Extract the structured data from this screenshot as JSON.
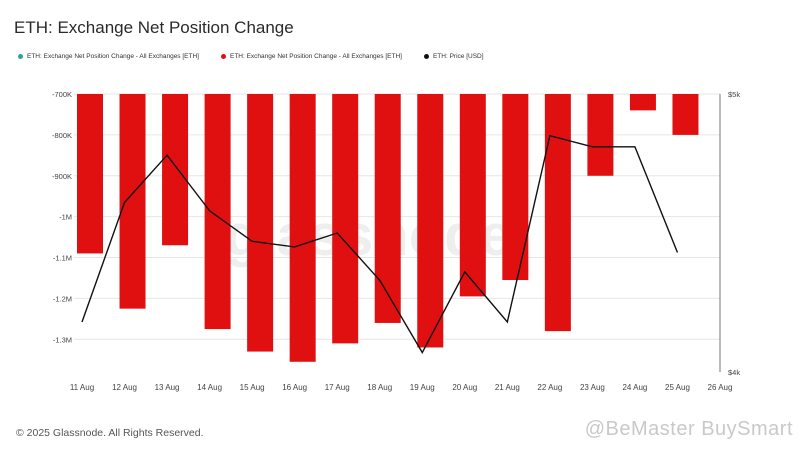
{
  "page": {
    "title": "ETH: Exchange Net Position Change",
    "footer": "© 2025 Glassnode. All Rights Reserved.",
    "watermark_center": "glassnode",
    "watermark_bottom": "@BeMaster BuySmart"
  },
  "legend": [
    {
      "label": "ETH: Exchange Net Position Change - All Exchanges [ETH]",
      "color": "#26a69a"
    },
    {
      "label": "ETH: Exchange Net Position Change - All Exchanges [ETH]",
      "color": "#e01010"
    },
    {
      "label": "ETH: Price [USD]",
      "color": "#111111"
    }
  ],
  "chart_data": {
    "type": "bar",
    "categories": [
      "11 Aug",
      "12 Aug",
      "13 Aug",
      "14 Aug",
      "15 Aug",
      "16 Aug",
      "17 Aug",
      "18 Aug",
      "19 Aug",
      "20 Aug",
      "21 Aug",
      "22 Aug",
      "23 Aug",
      "24 Aug",
      "25 Aug",
      "26 Aug"
    ],
    "series": [
      {
        "name": "ETH: Exchange Net Position Change - All Exchanges [ETH]",
        "type": "bar",
        "axis": "left",
        "color": "#e01010",
        "values": [
          -1090000,
          -1225000,
          -1070000,
          -1275000,
          -1330000,
          -1355000,
          -1310000,
          -1260000,
          -1320000,
          -1195000,
          -1155000,
          -1280000,
          -900000,
          -740000,
          -800000,
          null
        ]
      },
      {
        "name": "ETH: Price [USD]",
        "type": "line",
        "axis": "right",
        "color": "#111111",
        "values": [
          4180,
          4610,
          4780,
          4580,
          4470,
          4450,
          4500,
          4330,
          4070,
          4360,
          4180,
          4850,
          4810,
          4810,
          4430,
          null
        ]
      }
    ],
    "left_axis": {
      "ticks": [
        -700000,
        -800000,
        -900000,
        -1000000,
        -1100000,
        -1200000,
        -1300000
      ],
      "tick_labels": [
        "-700K",
        "-800K",
        "-900K",
        "-1M",
        "-1.1M",
        "-1.2M",
        "-1.3M"
      ],
      "range": [
        -700000,
        -1380000
      ],
      "inverted": true
    },
    "right_axis": {
      "tick_labels": [
        "$5k",
        "$4k"
      ],
      "ticks": [
        5000,
        4000
      ],
      "range": [
        4000,
        5000
      ]
    },
    "grid": true
  }
}
